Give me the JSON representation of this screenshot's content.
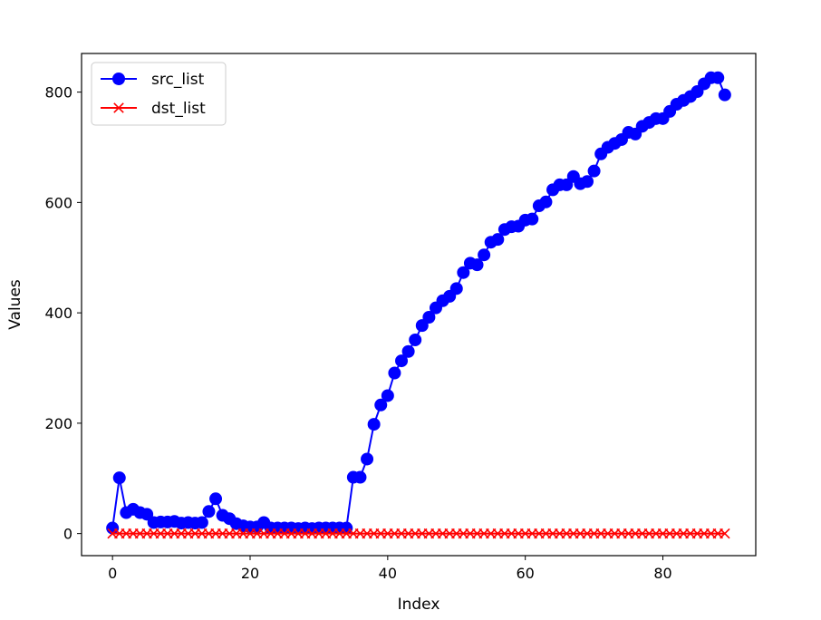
{
  "chart_data": {
    "type": "line",
    "xlabel": "Index",
    "ylabel": "Values",
    "xlim": [
      -4.5,
      93.5
    ],
    "ylim": [
      -40,
      870
    ],
    "xticks": [
      0,
      20,
      40,
      60,
      80
    ],
    "yticks": [
      0,
      200,
      400,
      600,
      800
    ],
    "grid": false,
    "legend_position": "upper-left",
    "series": [
      {
        "name": "src_list",
        "color": "#0000ff",
        "marker": "circle",
        "values": [
          10,
          101,
          38,
          44,
          38,
          35,
          20,
          21,
          21,
          22,
          19,
          20,
          19,
          20,
          40,
          63,
          33,
          27,
          18,
          14,
          12,
          12,
          20,
          10,
          10,
          10,
          10,
          9,
          10,
          9,
          10,
          10,
          10,
          10,
          10,
          102,
          102,
          135,
          198,
          233,
          250,
          291,
          313,
          330,
          351,
          377,
          392,
          409,
          422,
          430,
          444,
          473,
          490,
          487,
          505,
          528,
          533,
          551,
          556,
          557,
          568,
          570,
          594,
          601,
          623,
          632,
          632,
          647,
          634,
          638,
          657,
          688,
          700,
          707,
          714,
          727,
          724,
          738,
          745,
          752,
          752,
          765,
          778,
          785,
          792,
          801,
          815,
          826,
          826,
          795
        ]
      },
      {
        "name": "dst_list",
        "color": "#ff0000",
        "marker": "x",
        "values": [
          0,
          0,
          0,
          0,
          0,
          0,
          0,
          0,
          0,
          0,
          0,
          0,
          0,
          0,
          0,
          0,
          0,
          0,
          0,
          0,
          0,
          0,
          0,
          0,
          0,
          0,
          0,
          0,
          0,
          0,
          0,
          0,
          0,
          0,
          0,
          0,
          0,
          0,
          0,
          0,
          0,
          0,
          0,
          0,
          0,
          0,
          0,
          0,
          0,
          0,
          0,
          0,
          0,
          0,
          0,
          0,
          0,
          0,
          0,
          0,
          0,
          0,
          0,
          0,
          0,
          0,
          0,
          0,
          0,
          0,
          0,
          0,
          0,
          0,
          0,
          0,
          0,
          0,
          0,
          0,
          0,
          0,
          0,
          0,
          0,
          0,
          0,
          0,
          0,
          0
        ]
      }
    ]
  }
}
